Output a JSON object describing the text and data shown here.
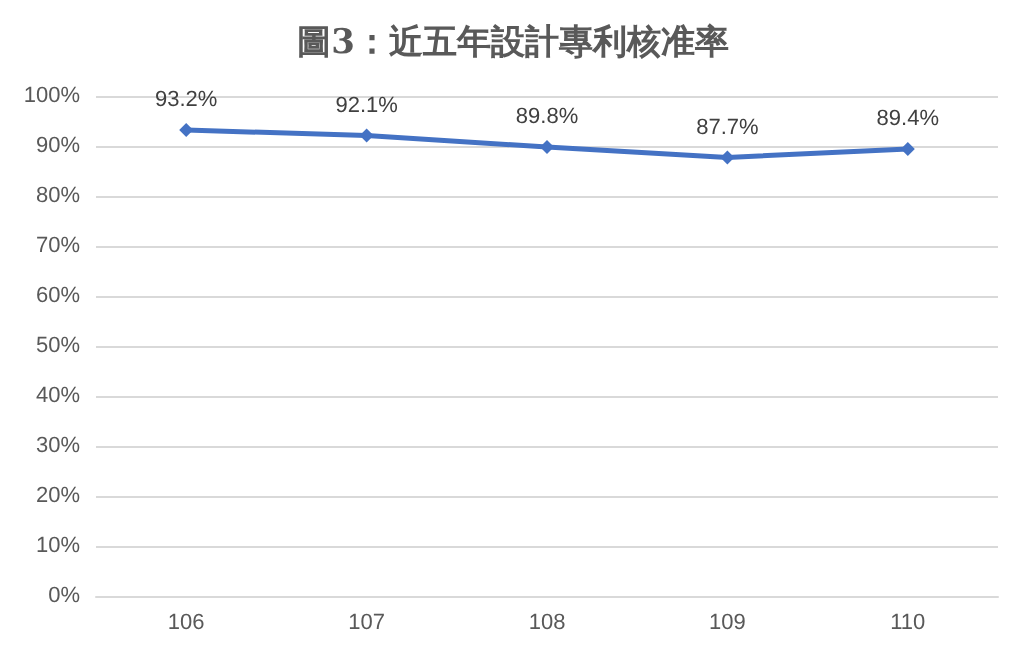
{
  "chart_data": {
    "type": "line",
    "title": "圖3：近五年設計專利核准率",
    "categories": [
      "106",
      "107",
      "108",
      "109",
      "110"
    ],
    "series": [
      {
        "color": "#4472c4",
        "values": [
          93.2,
          92.1,
          89.8,
          87.7,
          89.4
        ],
        "value_labels": [
          "93.2%",
          "92.1%",
          "89.8%",
          "87.7%",
          "89.4%"
        ]
      }
    ],
    "ylim": [
      0,
      100
    ],
    "yticks": [
      {
        "value": 0,
        "label": "0%"
      },
      {
        "value": 10,
        "label": "10%"
      },
      {
        "value": 20,
        "label": "20%"
      },
      {
        "value": 30,
        "label": "30%"
      },
      {
        "value": 40,
        "label": "40%"
      },
      {
        "value": 50,
        "label": "50%"
      },
      {
        "value": 60,
        "label": "60%"
      },
      {
        "value": 70,
        "label": "70%"
      },
      {
        "value": 80,
        "label": "80%"
      },
      {
        "value": 90,
        "label": "90%"
      },
      {
        "value": 100,
        "label": "100%"
      }
    ],
    "grid": "y",
    "marker": "diamond",
    "line_style": "solid"
  }
}
